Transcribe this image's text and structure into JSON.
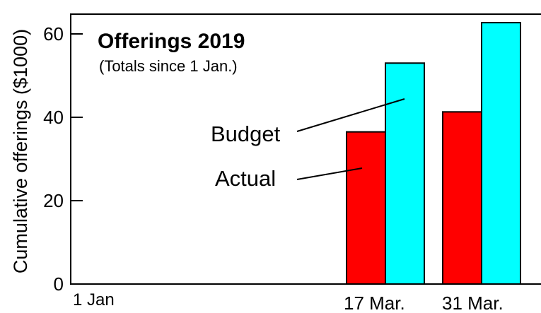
{
  "chart_data": {
    "type": "bar",
    "title": "Offerings 2019",
    "subtitle": "(Totals since 1 Jan.)",
    "ylabel": "Cumulative offerings ($1000)",
    "xlabel": "",
    "ylim": [
      0,
      65
    ],
    "yticks": [
      0,
      20,
      40,
      60
    ],
    "xticks": [
      "1 Jan",
      "17 Mar.",
      "31 Mar."
    ],
    "categories": [
      "17 Mar.",
      "31 Mar."
    ],
    "series": [
      {
        "name": "Actual",
        "color": "#ff0000",
        "values": [
          36.5,
          41.3
        ]
      },
      {
        "name": "Budget",
        "color": "#00ffff",
        "values": [
          53.0,
          62.7
        ]
      }
    ],
    "annotations": [
      "Budget",
      "Actual"
    ],
    "grid": false,
    "legend": "none"
  }
}
